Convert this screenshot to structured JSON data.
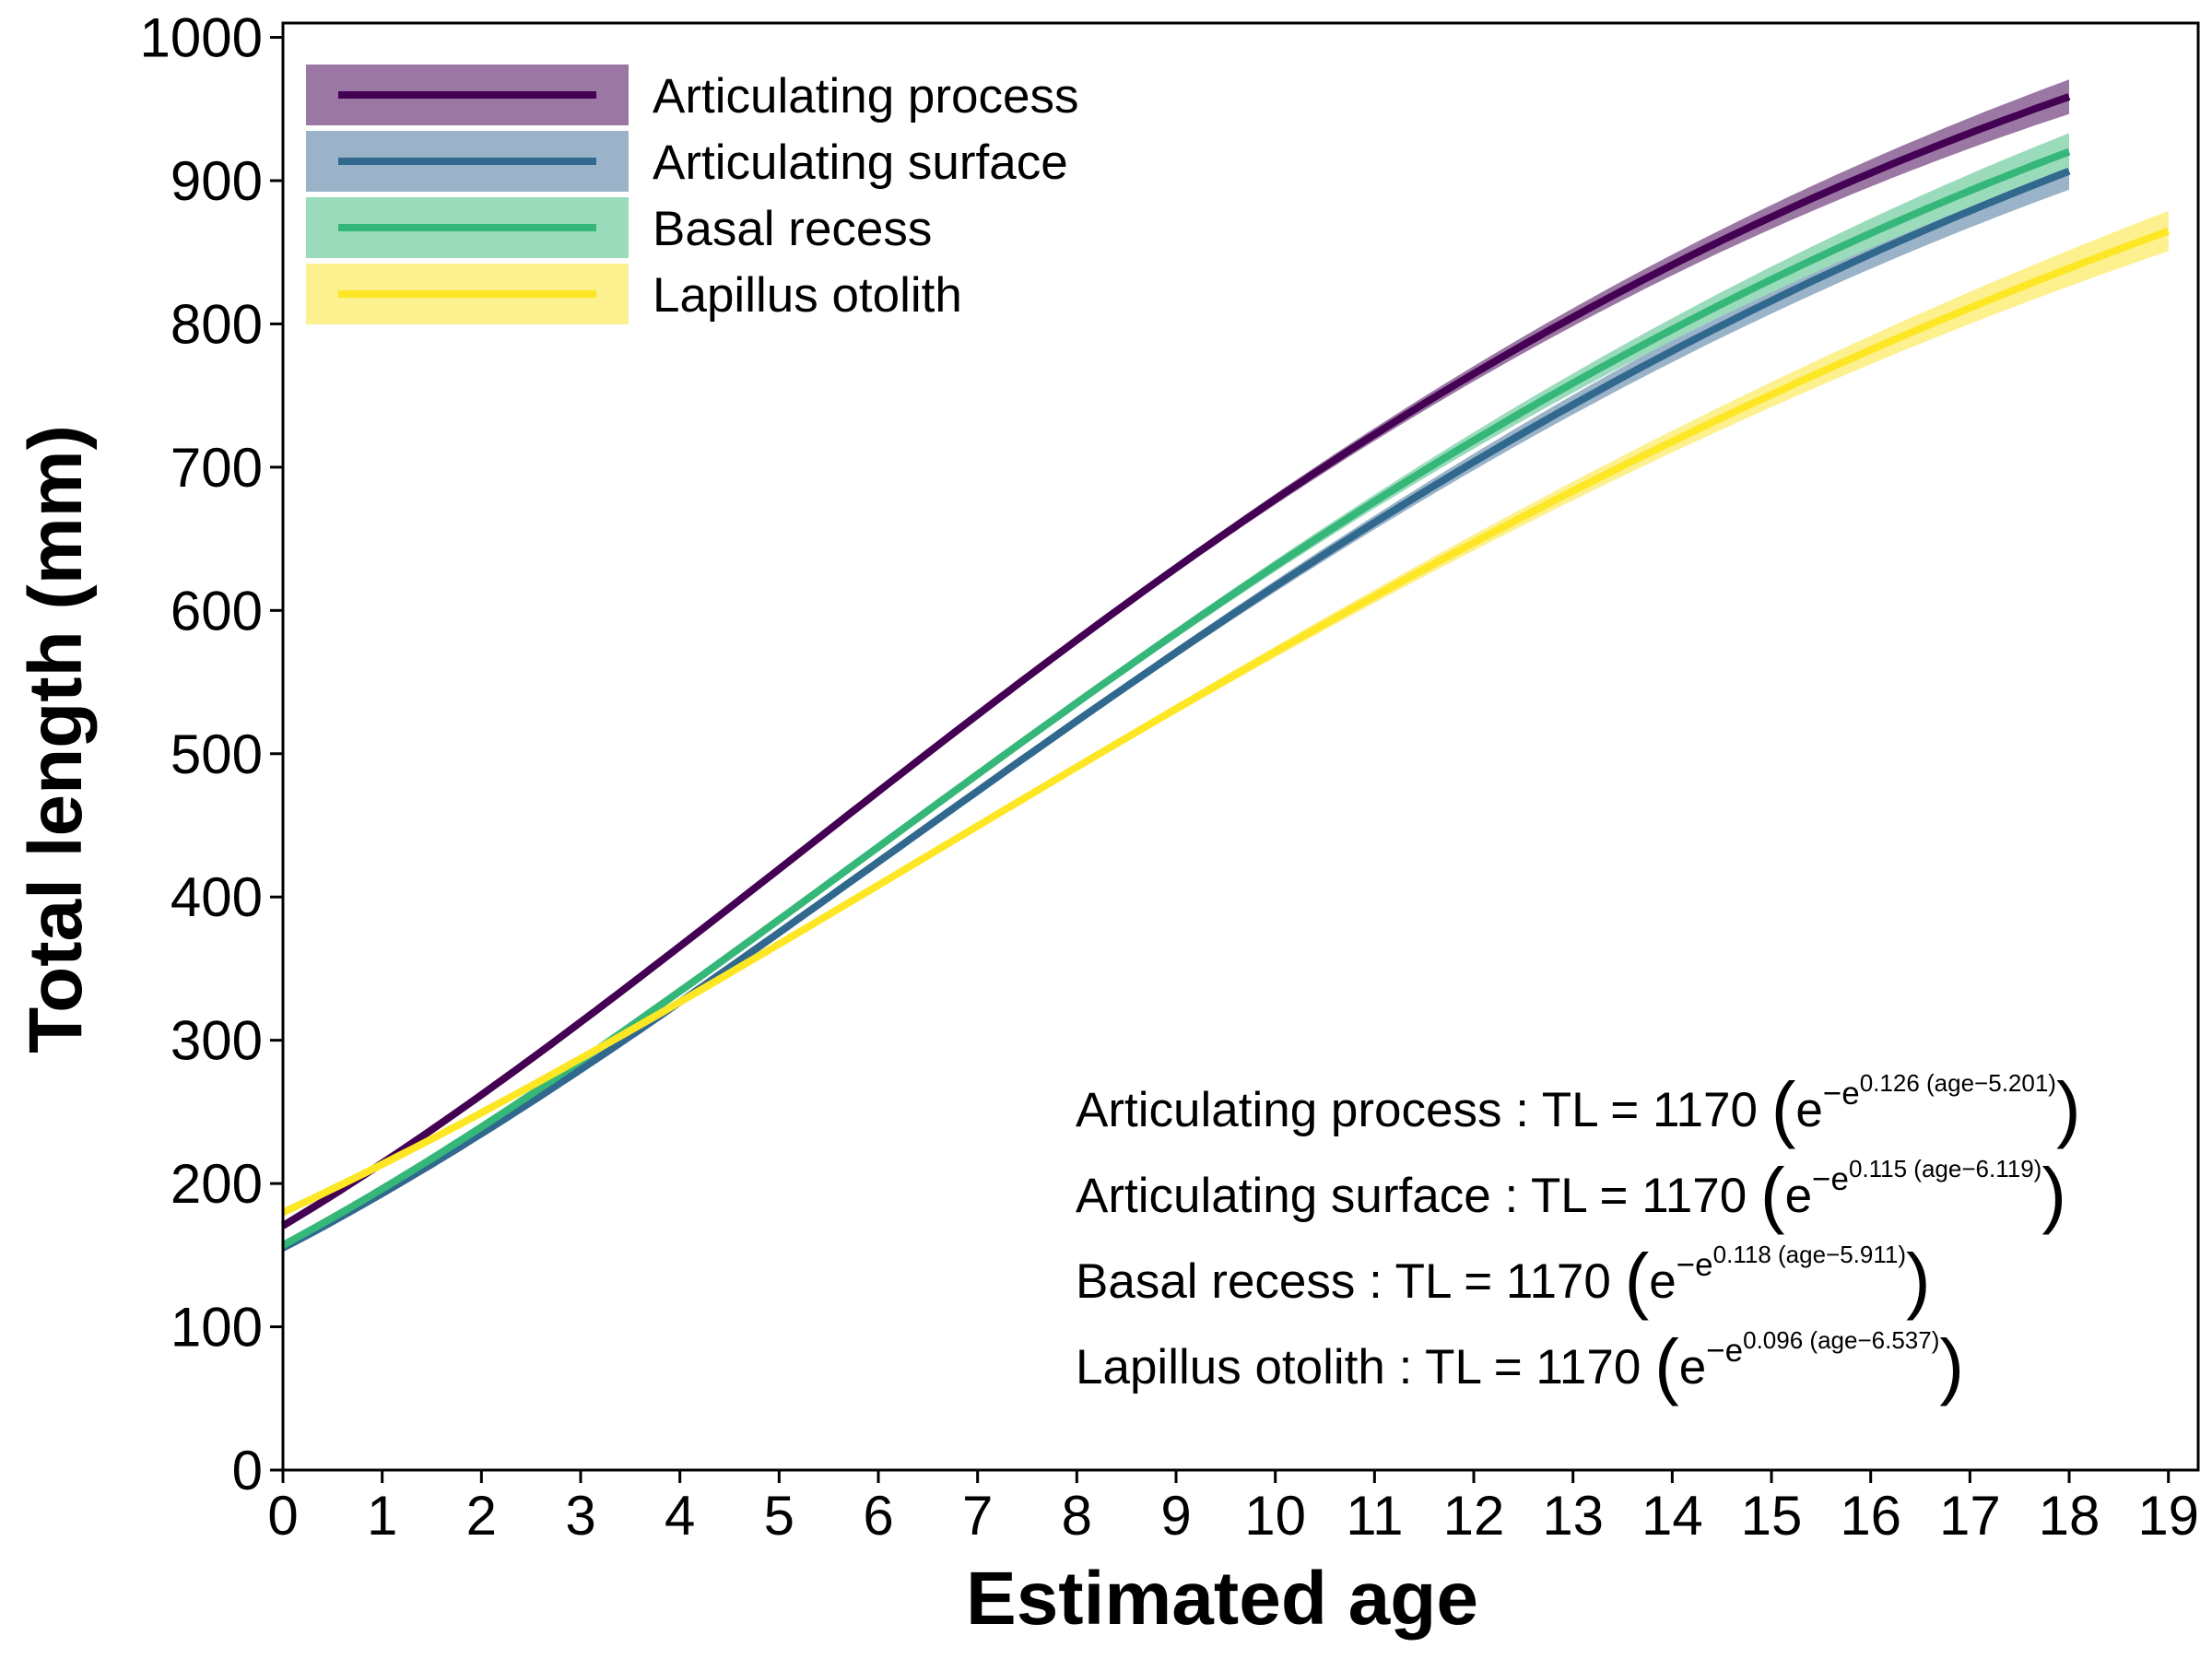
{
  "chart_data": {
    "type": "line",
    "xlabel": "Estimated age",
    "ylabel": "Total length (mm)",
    "xlim": [
      0,
      19.3
    ],
    "ylim": [
      0,
      1010
    ],
    "x_ticks": [
      "0",
      "1",
      "2",
      "3",
      "4",
      "5",
      "6",
      "7",
      "8",
      "9",
      "10",
      "11",
      "12",
      "13",
      "14",
      "15",
      "16",
      "17",
      "18",
      "19"
    ],
    "y_ticks": [
      "0",
      "100",
      "200",
      "300",
      "400",
      "500",
      "600",
      "700",
      "800",
      "900",
      "1000"
    ],
    "grid": false,
    "legend_position": "top-left",
    "series": [
      {
        "name": "Articulating process",
        "color": "#440154",
        "band_color": "#9b77a3",
        "model": {
          "L": 1170,
          "k": 0.126,
          "t0": 5.201
        },
        "x_range": [
          0,
          18
        ],
        "ci_halfwidth_at_end": 12,
        "equation_name": "Articulating process",
        "equation_rhs": "TL = 1170",
        "equation_exp": "0.126 (age−5.201)"
      },
      {
        "name": "Articulating surface",
        "color": "#31688e",
        "band_color": "#9bb3c8",
        "model": {
          "L": 1170,
          "k": 0.115,
          "t0": 6.119
        },
        "x_range": [
          0,
          18
        ],
        "ci_halfwidth_at_end": 13,
        "equation_name": "Articulating surface",
        "equation_rhs": "TL = 1170",
        "equation_exp": "0.115 (age−6.119)"
      },
      {
        "name": "Basal recess",
        "color": "#35b779",
        "band_color": "#9adbbc",
        "model": {
          "L": 1170,
          "k": 0.118,
          "t0": 5.911
        },
        "x_range": [
          0,
          18
        ],
        "ci_halfwidth_at_end": 13,
        "equation_name": "Basal recess",
        "equation_rhs": "TL = 1170",
        "equation_exp": "0.118 (age−5.911)"
      },
      {
        "name": "Lapillus otolith",
        "color": "#fde725",
        "band_color": "#fdf08f",
        "model": {
          "L": 1170,
          "k": 0.096,
          "t0": 6.537
        },
        "x_range": [
          0,
          19
        ],
        "ci_halfwidth_at_end": 14,
        "equation_name": "Lapillus otolith",
        "equation_rhs": "TL = 1170",
        "equation_exp": "0.096 (age−6.537)"
      }
    ]
  }
}
